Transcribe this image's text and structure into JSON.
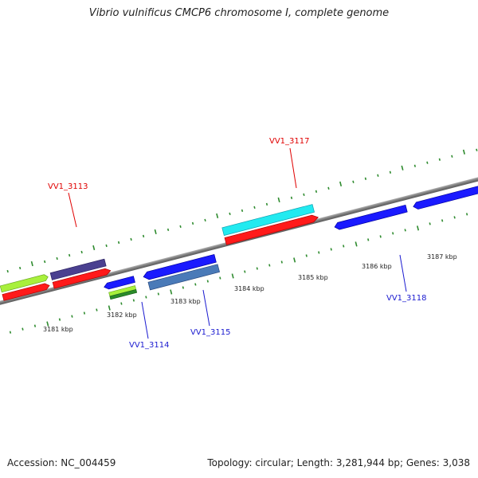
{
  "title": "Vibrio vulnificus CMCP6 chromosome I, complete genome",
  "footer": {
    "accession": "Accession: NC_004459",
    "topology": "Topology: circular; Length: 3,281,944 bp; Genes: 3,038"
  },
  "ticks": [
    {
      "label": "3181 kbp"
    },
    {
      "label": "3182 kbp"
    },
    {
      "label": "3183 kbp"
    },
    {
      "label": "3184 kbp"
    },
    {
      "label": "3185 kbp"
    },
    {
      "label": "3186 kbp"
    },
    {
      "label": "3187 kbp"
    }
  ],
  "gene_labels": [
    {
      "name": "VV1_3113",
      "color": "#e00000"
    },
    {
      "name": "VV1_3117",
      "color": "#e00000"
    },
    {
      "name": "VV1_3114",
      "color": "#1a1ad0"
    },
    {
      "name": "VV1_3115",
      "color": "#1a1ad0"
    },
    {
      "name": "VV1_3118",
      "color": "#1a1ad0"
    }
  ],
  "colors": {
    "backbone": "#808080",
    "tick": "#2e8b2e",
    "forward_cds": "#ff1a1a",
    "reverse_cds": "#1a1aff",
    "light_green": "#a8f03c",
    "dark_purple": "#4a4090",
    "cyan": "#22eaf0",
    "steel_blue": "#4a7ab8",
    "dark_green": "#2a8a2a"
  }
}
